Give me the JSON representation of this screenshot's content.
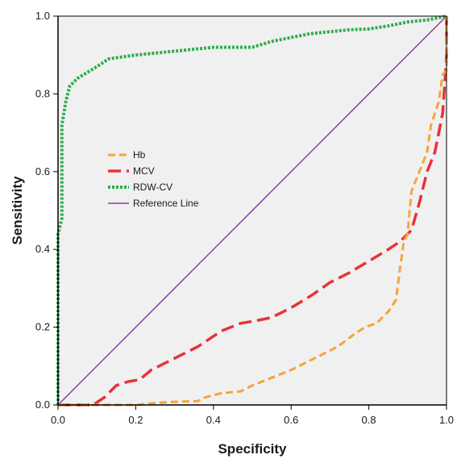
{
  "chart_data": {
    "type": "line",
    "title": "",
    "xlabel": "Specificity",
    "ylabel": "Sensitivity",
    "xlim": [
      0,
      1
    ],
    "ylim": [
      0,
      1
    ],
    "x_ticks": [
      "0.0",
      "0.2",
      "0.4",
      "0.6",
      "0.8",
      "1.0"
    ],
    "y_ticks": [
      "0.0",
      "0.2",
      "0.4",
      "0.6",
      "0.8",
      "1.0"
    ],
    "grid": false,
    "background": "#f0f0f0",
    "legend_position": "upper-left inside plot",
    "series": [
      {
        "name": "Hb",
        "color": "#f5a43a",
        "dash": "dashed",
        "points": [
          [
            0.0,
            0.0
          ],
          [
            0.1,
            0.0
          ],
          [
            0.2,
            0.0
          ],
          [
            0.25,
            0.005
          ],
          [
            0.3,
            0.008
          ],
          [
            0.36,
            0.01
          ],
          [
            0.38,
            0.02
          ],
          [
            0.42,
            0.03
          ],
          [
            0.47,
            0.035
          ],
          [
            0.5,
            0.05
          ],
          [
            0.55,
            0.07
          ],
          [
            0.6,
            0.09
          ],
          [
            0.66,
            0.12
          ],
          [
            0.72,
            0.15
          ],
          [
            0.76,
            0.18
          ],
          [
            0.79,
            0.2
          ],
          [
            0.82,
            0.21
          ],
          [
            0.85,
            0.24
          ],
          [
            0.87,
            0.27
          ],
          [
            0.88,
            0.35
          ],
          [
            0.89,
            0.42
          ],
          [
            0.9,
            0.44
          ],
          [
            0.905,
            0.5
          ],
          [
            0.91,
            0.55
          ],
          [
            0.93,
            0.6
          ],
          [
            0.95,
            0.65
          ],
          [
            0.96,
            0.72
          ],
          [
            0.98,
            0.78
          ],
          [
            0.99,
            0.85
          ],
          [
            1.0,
            0.86
          ],
          [
            1.0,
            1.0
          ]
        ]
      },
      {
        "name": "MCV",
        "color": "#e8323a",
        "dash": "long-dashed",
        "points": [
          [
            0.0,
            0.0
          ],
          [
            0.09,
            0.0
          ],
          [
            0.12,
            0.02
          ],
          [
            0.15,
            0.05
          ],
          [
            0.18,
            0.06
          ],
          [
            0.21,
            0.065
          ],
          [
            0.24,
            0.09
          ],
          [
            0.3,
            0.12
          ],
          [
            0.36,
            0.15
          ],
          [
            0.42,
            0.19
          ],
          [
            0.47,
            0.21
          ],
          [
            0.5,
            0.215
          ],
          [
            0.55,
            0.225
          ],
          [
            0.6,
            0.25
          ],
          [
            0.65,
            0.28
          ],
          [
            0.7,
            0.315
          ],
          [
            0.75,
            0.34
          ],
          [
            0.8,
            0.37
          ],
          [
            0.85,
            0.4
          ],
          [
            0.88,
            0.42
          ],
          [
            0.91,
            0.45
          ],
          [
            0.93,
            0.52
          ],
          [
            0.95,
            0.6
          ],
          [
            0.97,
            0.65
          ],
          [
            0.98,
            0.7
          ],
          [
            0.99,
            0.75
          ],
          [
            0.995,
            0.82
          ],
          [
            1.0,
            0.9
          ],
          [
            1.0,
            1.0
          ]
        ]
      },
      {
        "name": "RDW-CV",
        "color": "#2dae4a",
        "dash": "dotted",
        "points": [
          [
            0.0,
            0.0
          ],
          [
            0.0,
            0.44
          ],
          [
            0.01,
            0.48
          ],
          [
            0.01,
            0.72
          ],
          [
            0.02,
            0.78
          ],
          [
            0.03,
            0.82
          ],
          [
            0.05,
            0.84
          ],
          [
            0.1,
            0.87
          ],
          [
            0.13,
            0.89
          ],
          [
            0.2,
            0.9
          ],
          [
            0.25,
            0.905
          ],
          [
            0.35,
            0.915
          ],
          [
            0.4,
            0.92
          ],
          [
            0.5,
            0.92
          ],
          [
            0.55,
            0.935
          ],
          [
            0.6,
            0.945
          ],
          [
            0.65,
            0.955
          ],
          [
            0.7,
            0.96
          ],
          [
            0.75,
            0.965
          ],
          [
            0.8,
            0.967
          ],
          [
            0.85,
            0.975
          ],
          [
            0.9,
            0.985
          ],
          [
            0.95,
            0.99
          ],
          [
            1.0,
            1.0
          ]
        ]
      },
      {
        "name": "Reference Line",
        "color": "#8b3f9a",
        "dash": "solid",
        "points": [
          [
            0.0,
            0.0
          ],
          [
            1.0,
            1.0
          ]
        ]
      }
    ]
  }
}
